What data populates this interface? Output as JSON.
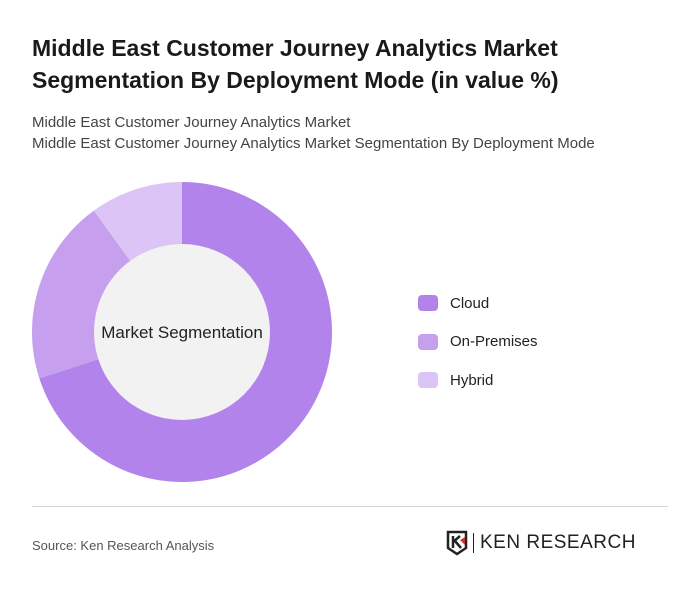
{
  "title": "Middle East Customer Journey Analytics Market Segmentation By Deployment Mode (in value %)",
  "subtitle1": "Middle East Customer Journey Analytics Market",
  "subtitle2": "Middle East Customer Journey Analytics Market Segmentation By Deployment Mode",
  "source": "Source: Ken Research Analysis",
  "logo_text": "KEN RESEARCH",
  "chart_data": {
    "type": "pie",
    "donut": true,
    "center_label": "Market Segmentation",
    "categories": [
      "Cloud",
      "On-Premises",
      "Hybrid"
    ],
    "values": [
      70,
      20,
      10
    ],
    "colors": [
      "#b383ec",
      "#c6a0ef",
      "#dcc5f6"
    ],
    "center_color": "#f2f2f2",
    "legend_position": "right"
  }
}
